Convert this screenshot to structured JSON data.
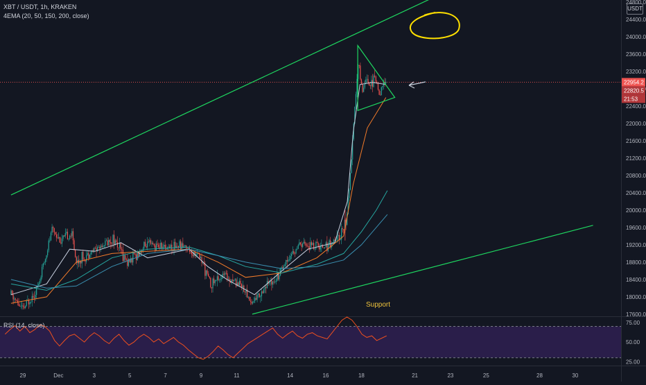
{
  "header": {
    "title": "XBT / USDT, 1h, KRAKEN",
    "indicator": "4EMA (20, 50, 150, 200, close)",
    "unit_button": "USDT"
  },
  "rsi_panel": {
    "label": "RSI (14, close)"
  },
  "annotations": {
    "support_label": "Support"
  },
  "price_tags": {
    "last": "22954.2",
    "second": "22820.5",
    "timer": "21:53"
  },
  "colors": {
    "background": "#131722",
    "candle_up": "#26a69a",
    "candle_down": "#ef5350",
    "trendline": "#1ed760",
    "ema20": "#c8d0e0",
    "ema50": "#f57c2a",
    "ema150": "#26a6a0",
    "ema200": "#3a8fb0",
    "rsi_line": "#f0501e",
    "rsi_band": "#2a1e4a",
    "circle": "#ffe000",
    "support_text": "#f0c43c"
  },
  "chart_data": {
    "type": "candlestick",
    "title": "XBT / USDT, 1h, KRAKEN",
    "x_ticks": [
      "29",
      "Dec",
      "3",
      "5",
      "7",
      "9",
      "11",
      "14",
      "16",
      "18",
      "21",
      "23",
      "25",
      "28",
      "30"
    ],
    "y_ticks": [
      17600,
      18000,
      18400,
      18800,
      19200,
      19600,
      20000,
      20400,
      20800,
      21200,
      21600,
      22000,
      22400,
      22800,
      23200,
      23600,
      24000,
      24400,
      24800
    ],
    "ylim": [
      17550,
      24850
    ],
    "price_path": [
      {
        "date": "Nov 28 08:00",
        "price": 18050
      },
      {
        "date": "Nov 29 00:00",
        "price": 17700
      },
      {
        "date": "Nov 29 21:00",
        "price": 18250
      },
      {
        "date": "Nov 30 16:00",
        "price": 19600
      },
      {
        "date": "Dec 1 02:00",
        "price": 19300
      },
      {
        "date": "Dec 1 18:00",
        "price": 19450
      },
      {
        "date": "Dec 2 00:00",
        "price": 18800
      },
      {
        "date": "Dec 3 01:00",
        "price": 19100
      },
      {
        "date": "Dec 4 02:00",
        "price": 19350
      },
      {
        "date": "Dec 4 21:00",
        "price": 18800
      },
      {
        "date": "Dec 5 23:00",
        "price": 19200
      },
      {
        "date": "Dec 6 21:00",
        "price": 19150
      },
      {
        "date": "Dec 7 23:00",
        "price": 19200
      },
      {
        "date": "Dec 8 23:00",
        "price": 18900
      },
      {
        "date": "Dec 9 13:00",
        "price": 18300
      },
      {
        "date": "Dec 10 07:00",
        "price": 18500
      },
      {
        "date": "Dec 11 06:00",
        "price": 18300
      },
      {
        "date": "Dec 11 20:00",
        "price": 17850
      },
      {
        "date": "Dec 12 13:00",
        "price": 18200
      },
      {
        "date": "Dec 13 06:00",
        "price": 18500
      },
      {
        "date": "Dec 13 21:00",
        "price": 18900
      },
      {
        "date": "Dec 14 15:00",
        "price": 19200
      },
      {
        "date": "Dec 15 18:00",
        "price": 19150
      },
      {
        "date": "Dec 16 16:00",
        "price": 19300
      },
      {
        "date": "Dec 17 04:00",
        "price": 19800
      },
      {
        "date": "Dec 17 11:00",
        "price": 21200
      },
      {
        "date": "Dec 17 16:00",
        "price": 22600
      },
      {
        "date": "Dec 17 20:00",
        "price": 23400
      },
      {
        "date": "Dec 18 02:00",
        "price": 22700
      },
      {
        "date": "Dec 18 06:00",
        "price": 23100
      },
      {
        "date": "Dec 18 12:00",
        "price": 22900
      },
      {
        "date": "Dec 18 18:00",
        "price": 23050
      },
      {
        "date": "Dec 19 00:00",
        "price": 22700
      },
      {
        "date": "Dec 19 06:00",
        "price": 22900
      },
      {
        "date": "Dec 19 10:00",
        "price": 22954.2
      }
    ],
    "ema_series": [
      {
        "points": [
          {
            "date": "Nov 28 08:00",
            "price": 18050
          },
          {
            "date": "Nov 30 08:00",
            "price": 18300
          },
          {
            "date": "Dec 1 15:00",
            "price": 19100
          },
          {
            "date": "Dec 3 01:00",
            "price": 19050
          },
          {
            "date": "Dec 4 12:00",
            "price": 19250
          },
          {
            "date": "Dec 6 00:00",
            "price": 18900
          },
          {
            "date": "Dec 8 08:00",
            "price": 19100
          },
          {
            "date": "Dec 9 09:00",
            "price": 18700
          },
          {
            "date": "Dec 10 11:00",
            "price": 18400
          },
          {
            "date": "Dec 12 00:00",
            "price": 18050
          },
          {
            "date": "Dec 13 13:00",
            "price": 18600
          },
          {
            "date": "Dec 15 00:00",
            "price": 19100
          },
          {
            "date": "Dec 16 12:00",
            "price": 19250
          },
          {
            "date": "Dec 17 05:00",
            "price": 20200
          },
          {
            "date": "Dec 17 13:00",
            "price": 21800
          },
          {
            "date": "Dec 17 22:00",
            "price": 22900
          },
          {
            "date": "Dec 18 15:00",
            "price": 22950
          },
          {
            "date": "Dec 19 09:00",
            "price": 22900
          }
        ]
      },
      {
        "points": [
          {
            "date": "Nov 28 08:00",
            "price": 17850
          },
          {
            "date": "Nov 30 08:00",
            "price": 18000
          },
          {
            "date": "Dec 2 00:00",
            "price": 18800
          },
          {
            "date": "Dec 4 00:00",
            "price": 19000
          },
          {
            "date": "Dec 6 00:00",
            "price": 19050
          },
          {
            "date": "Dec 8 08:00",
            "price": 19100
          },
          {
            "date": "Dec 9 23:00",
            "price": 18800
          },
          {
            "date": "Dec 11 12:00",
            "price": 18450
          },
          {
            "date": "Dec 13 13:00",
            "price": 18550
          },
          {
            "date": "Dec 15 12:00",
            "price": 18900
          },
          {
            "date": "Dec 17 00:00",
            "price": 19400
          },
          {
            "date": "Dec 17 13:00",
            "price": 20600
          },
          {
            "date": "Dec 18 08:00",
            "price": 21900
          },
          {
            "date": "Dec 19 09:00",
            "price": 22600
          }
        ]
      },
      {
        "points": [
          {
            "date": "Nov 28 08:00",
            "price": 18300
          },
          {
            "date": "Nov 30 08:00",
            "price": 18150
          },
          {
            "date": "Dec 2 00:00",
            "price": 18400
          },
          {
            "date": "Dec 4 00:00",
            "price": 18900
          },
          {
            "date": "Dec 6 00:00",
            "price": 19100
          },
          {
            "date": "Dec 8 08:00",
            "price": 19150
          },
          {
            "date": "Dec 9 23:00",
            "price": 18950
          },
          {
            "date": "Dec 11 12:00",
            "price": 18700
          },
          {
            "date": "Dec 13 13:00",
            "price": 18550
          },
          {
            "date": "Dec 15 12:00",
            "price": 18750
          },
          {
            "date": "Dec 17 00:00",
            "price": 19000
          },
          {
            "date": "Dec 18 00:00",
            "price": 19500
          },
          {
            "date": "Dec 18 20:00",
            "price": 20000
          },
          {
            "date": "Dec 19 11:00",
            "price": 20450
          }
        ]
      },
      {
        "points": [
          {
            "date": "Nov 28 08:00",
            "price": 18400
          },
          {
            "date": "Nov 30 08:00",
            "price": 18200
          },
          {
            "date": "Dec 2 00:00",
            "price": 18250
          },
          {
            "date": "Dec 4 00:00",
            "price": 18700
          },
          {
            "date": "Dec 6 00:00",
            "price": 19000
          },
          {
            "date": "Dec 8 08:00",
            "price": 19100
          },
          {
            "date": "Dec 9 23:00",
            "price": 18950
          },
          {
            "date": "Dec 11 12:00",
            "price": 18800
          },
          {
            "date": "Dec 13 13:00",
            "price": 18650
          },
          {
            "date": "Dec 15 12:00",
            "price": 18700
          },
          {
            "date": "Dec 17 00:00",
            "price": 18850
          },
          {
            "date": "Dec 18 00:00",
            "price": 19200
          },
          {
            "date": "Dec 18 20:00",
            "price": 19600
          },
          {
            "date": "Dec 19 11:00",
            "price": 19900
          }
        ]
      }
    ],
    "trendlines": [
      {
        "from": {
          "date": "Nov 28 08:00",
          "price": 20350
        },
        "to": {
          "date": "Dec 22 00:00",
          "price": 24900
        }
      },
      {
        "from": {
          "date": "Dec 11 21:00",
          "price": 17600
        },
        "to": {
          "date": "Dec 31 00:00",
          "price": 19650
        }
      }
    ],
    "triangle": [
      {
        "date": "Dec 17 19:00",
        "price": 23800
      },
      {
        "date": "Dec 19 21:00",
        "price": 22600
      },
      {
        "date": "Dec 17 19:00",
        "price": 22300
      }
    ],
    "rsi": {
      "label": "RSI (14, close)",
      "levels": [
        25,
        50,
        75
      ],
      "band": [
        30,
        70
      ],
      "ylim": [
        20,
        82
      ],
      "values": [
        60,
        66,
        71,
        64,
        70,
        62,
        66,
        72,
        70,
        64,
        52,
        45,
        52,
        58,
        60,
        55,
        50,
        57,
        62,
        58,
        52,
        48,
        55,
        60,
        52,
        46,
        50,
        56,
        60,
        56,
        50,
        54,
        48,
        52,
        56,
        50,
        46,
        40,
        35,
        30,
        28,
        32,
        38,
        45,
        40,
        34,
        30,
        36,
        42,
        48,
        52,
        56,
        60,
        64,
        68,
        60,
        55,
        60,
        64,
        58,
        55,
        60,
        62,
        58,
        56,
        54,
        62,
        70,
        78,
        82,
        78,
        70,
        60,
        56,
        58,
        52,
        55,
        58
      ]
    }
  }
}
